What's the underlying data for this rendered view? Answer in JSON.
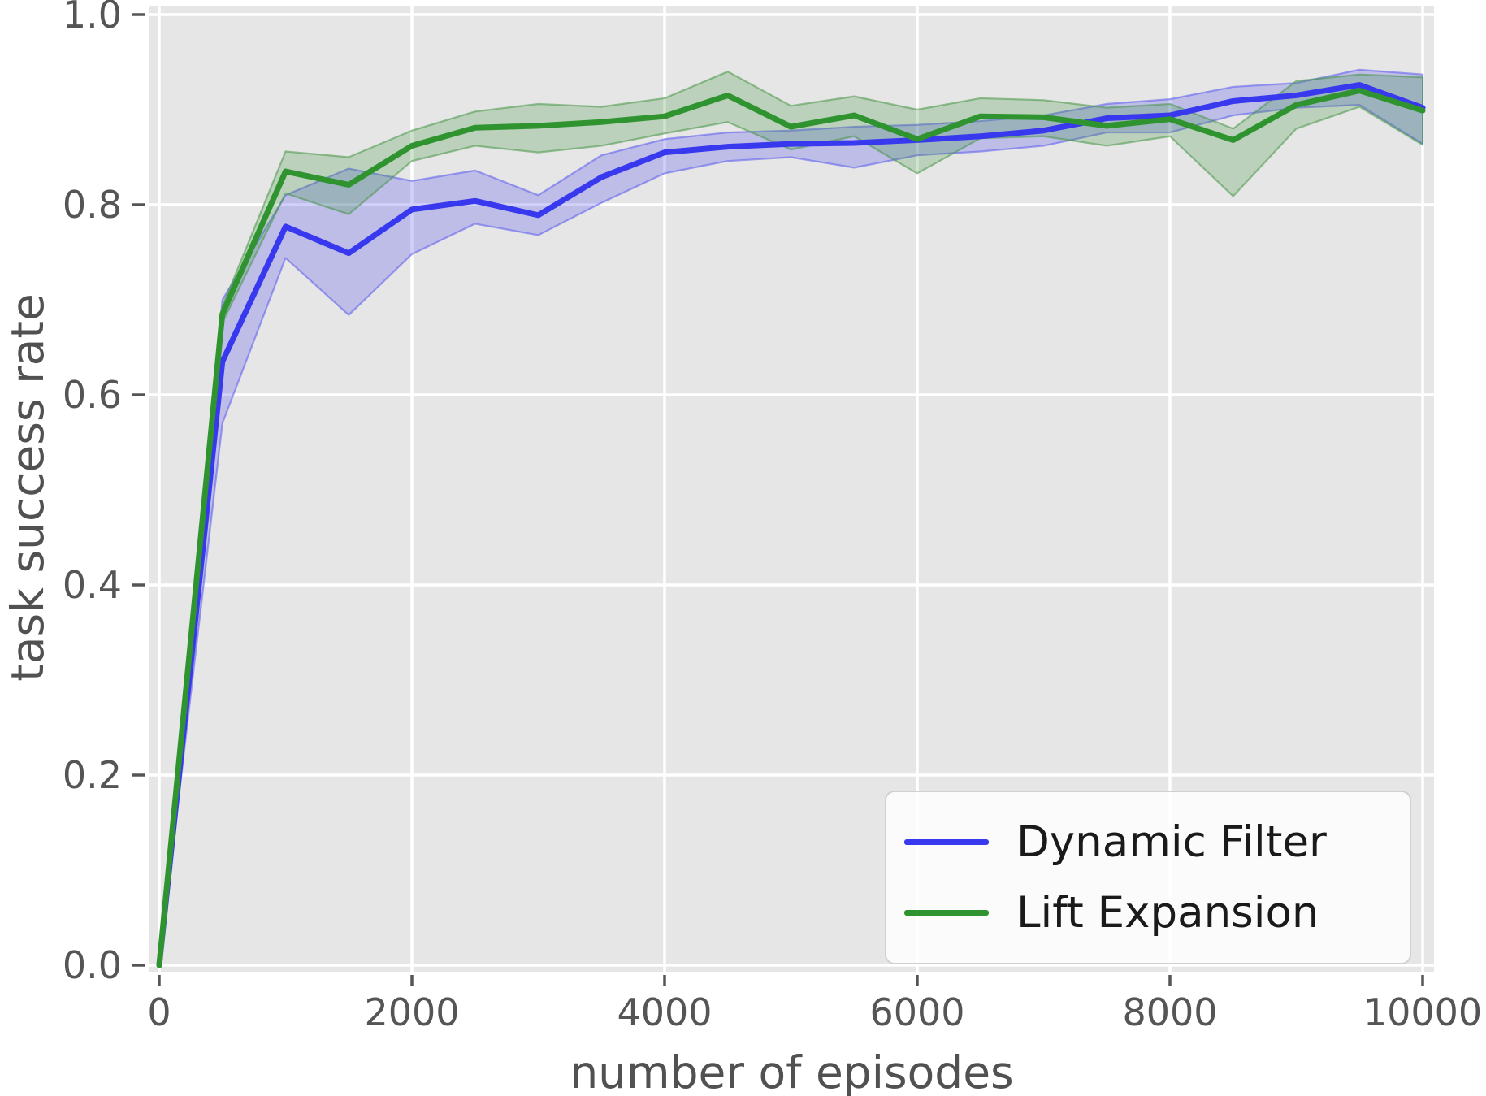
{
  "style": {
    "figure_background": "#ffffff",
    "plot_background": "#e6e6e6",
    "grid_color": "#ffffff",
    "tick_color": "#555555",
    "label_color": "#515151",
    "legend_text_color": "#1a1a1a",
    "legend_background": "rgba(255,255,255,0.82)",
    "legend_border": "#d0d0d0"
  },
  "chart_data": {
    "type": "line",
    "title": "",
    "xlabel": "number of episodes",
    "ylabel": "task success rate",
    "xlim": [
      0,
      10000
    ],
    "ylim": [
      0.0,
      1.0
    ],
    "grid": true,
    "legend_position": "lower right",
    "xticks": [
      0,
      2000,
      4000,
      6000,
      8000,
      10000
    ],
    "xtick_labels": [
      "0",
      "2000",
      "4000",
      "6000",
      "8000",
      "10000"
    ],
    "yticks": [
      0.0,
      0.2,
      0.4,
      0.6,
      0.8,
      1.0
    ],
    "ytick_labels": [
      "0.0",
      "0.2",
      "0.4",
      "0.6",
      "0.8",
      "1.0"
    ],
    "x": [
      0,
      500,
      1000,
      1500,
      2000,
      2500,
      3000,
      3500,
      4000,
      4500,
      5000,
      5500,
      6000,
      6500,
      7000,
      7500,
      8000,
      8500,
      9000,
      9500,
      10000
    ],
    "series": [
      {
        "name": "Dynamic Filter",
        "color": "#3838ee",
        "band_fill": "rgba(68,68,238,0.25)",
        "band_edge": "rgba(90,90,238,0.55)",
        "values": [
          0.0,
          0.635,
          0.777,
          0.749,
          0.795,
          0.804,
          0.789,
          0.829,
          0.855,
          0.861,
          0.864,
          0.865,
          0.868,
          0.872,
          0.878,
          0.891,
          0.894,
          0.909,
          0.915,
          0.926,
          0.902
        ],
        "lower": [
          0.0,
          0.57,
          0.744,
          0.684,
          0.748,
          0.78,
          0.768,
          0.802,
          0.833,
          0.846,
          0.85,
          0.839,
          0.852,
          0.856,
          0.862,
          0.876,
          0.876,
          0.894,
          0.902,
          0.905,
          0.864
        ],
        "upper": [
          0.0,
          0.7,
          0.81,
          0.838,
          0.825,
          0.836,
          0.81,
          0.852,
          0.869,
          0.876,
          0.878,
          0.882,
          0.884,
          0.888,
          0.894,
          0.906,
          0.911,
          0.924,
          0.928,
          0.942,
          0.937
        ]
      },
      {
        "name": "Lift Expansion",
        "color": "#2f942f",
        "band_fill": "rgba(58,148,58,0.25)",
        "band_edge": "rgba(70,150,70,0.55)",
        "values": [
          0.0,
          0.685,
          0.835,
          0.821,
          0.862,
          0.881,
          0.883,
          0.887,
          0.893,
          0.915,
          0.882,
          0.894,
          0.869,
          0.893,
          0.892,
          0.883,
          0.89,
          0.868,
          0.905,
          0.92,
          0.899
        ],
        "lower": [
          0.0,
          0.676,
          0.812,
          0.79,
          0.846,
          0.862,
          0.855,
          0.862,
          0.875,
          0.887,
          0.858,
          0.872,
          0.833,
          0.87,
          0.872,
          0.862,
          0.872,
          0.809,
          0.88,
          0.903,
          0.863
        ],
        "upper": [
          0.0,
          0.693,
          0.856,
          0.85,
          0.878,
          0.898,
          0.906,
          0.903,
          0.912,
          0.94,
          0.904,
          0.914,
          0.9,
          0.912,
          0.91,
          0.902,
          0.906,
          0.88,
          0.93,
          0.937,
          0.934
        ]
      }
    ]
  }
}
